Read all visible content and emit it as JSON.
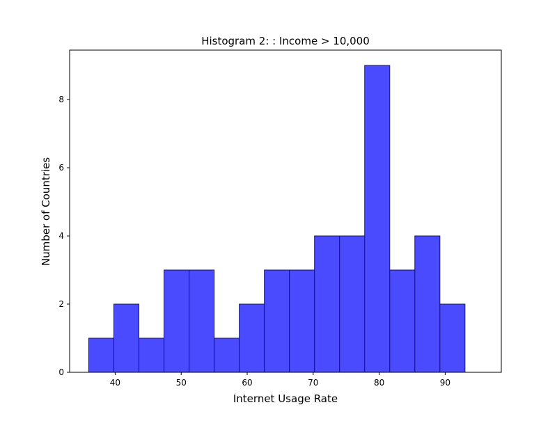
{
  "chart_data": {
    "type": "bar",
    "title": "Histogram 2: : Income > 10,000",
    "xlabel": "Internet Usage Rate",
    "ylabel": "Number of Countries",
    "bin_edges": [
      36.0,
      39.8,
      43.6,
      47.4,
      51.2,
      55.0,
      58.8,
      62.6,
      66.4,
      70.2,
      74.0,
      77.8,
      81.6,
      85.4,
      89.2,
      93.0
    ],
    "values": [
      1,
      2,
      1,
      3,
      3,
      1,
      2,
      3,
      3,
      4,
      4,
      9,
      3,
      4,
      2
    ],
    "xlim": [
      33.1,
      98.5
    ],
    "ylim": [
      0,
      9.45
    ],
    "xticks": [
      40,
      50,
      60,
      70,
      80,
      90
    ],
    "yticks": [
      0,
      2,
      4,
      6,
      8
    ],
    "grid": false,
    "bar_color": "#4a4aff",
    "bar_edge_color": "#1a1a4a"
  }
}
